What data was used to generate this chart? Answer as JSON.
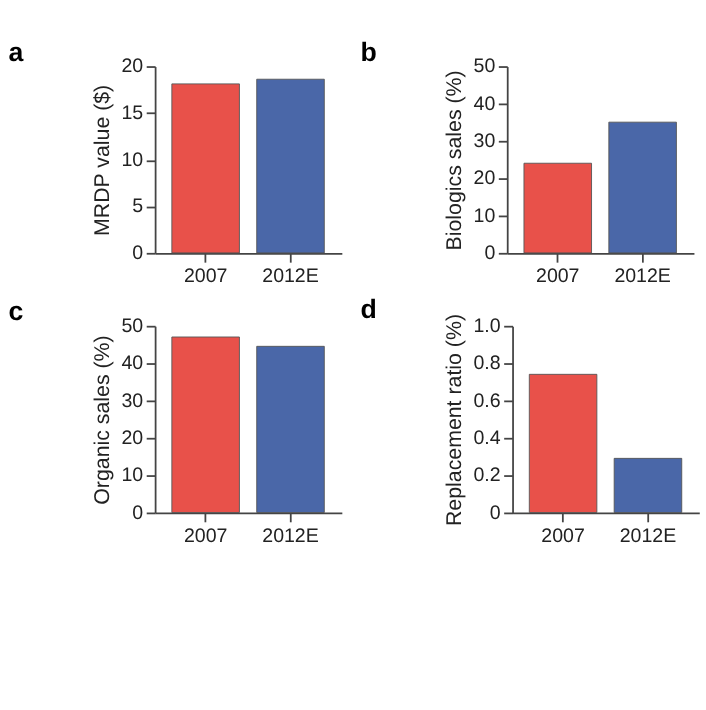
{
  "chart_data": [
    {
      "type": "bar",
      "title": "a",
      "ylabel": "MRDP value ($)",
      "categories": [
        "2007",
        "2012E"
      ],
      "values": [
        18.1,
        18.6
      ],
      "colors": [
        "#e8514a",
        "#4a67a8"
      ],
      "ylim": [
        0,
        20
      ],
      "yticks": [
        0,
        5,
        10,
        15,
        20
      ]
    },
    {
      "type": "bar",
      "title": "b",
      "ylabel": "Biologics sales (%)",
      "categories": [
        "2007",
        "2012E"
      ],
      "values": [
        24,
        35
      ],
      "colors": [
        "#e8514a",
        "#4a67a8"
      ],
      "ylim": [
        0,
        50
      ],
      "yticks": [
        0,
        10,
        20,
        30,
        40,
        50
      ]
    },
    {
      "type": "bar",
      "title": "c",
      "ylabel": "Organic sales (%)",
      "categories": [
        "2007",
        "2012E"
      ],
      "values": [
        47,
        44.5
      ],
      "colors": [
        "#e8514a",
        "#4a67a8"
      ],
      "ylim": [
        0,
        50
      ],
      "yticks": [
        0,
        10,
        20,
        30,
        40,
        50
      ]
    },
    {
      "type": "bar",
      "title": "d",
      "ylabel": "Replacement ratio (%)",
      "categories": [
        "2007",
        "2012E"
      ],
      "values": [
        0.74,
        0.29
      ],
      "colors": [
        "#e8514a",
        "#4a67a8"
      ],
      "ylim": [
        0,
        1
      ],
      "yticks": [
        0,
        {
          "value": 0.2,
          "label": "0.2"
        },
        {
          "value": 0.4,
          "label": "0.4"
        },
        {
          "value": 0.6,
          "label": "0.6"
        },
        {
          "value": 0.8,
          "label": "0.8"
        },
        {
          "value": 1,
          "label": "1.0"
        }
      ]
    }
  ]
}
